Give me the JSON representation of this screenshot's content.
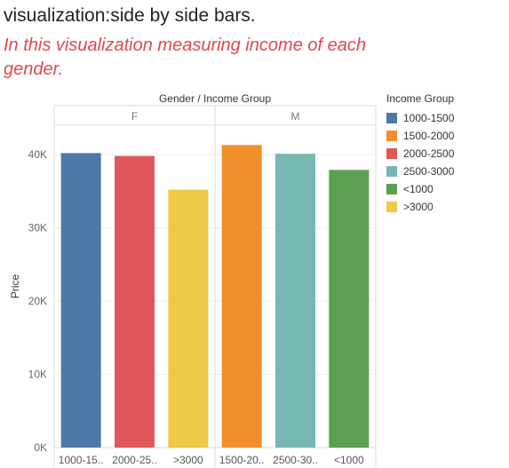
{
  "page": {
    "title": "visualization:side by side bars.",
    "subtitle": "In this visualization measuring income of each gender."
  },
  "chart_data": {
    "type": "bar",
    "header": "Gender  /  Income Group",
    "ylabel": "Price",
    "ylim": [
      0,
      44000
    ],
    "yticks": [
      {
        "value": 0,
        "label": "0K"
      },
      {
        "value": 10000,
        "label": "10K"
      },
      {
        "value": 20000,
        "label": "20K"
      },
      {
        "value": 30000,
        "label": "30K"
      },
      {
        "value": 40000,
        "label": "40K"
      }
    ],
    "panels": [
      {
        "gender": "F",
        "bars": [
          {
            "label": "1000-15..",
            "group": "1000-1500",
            "value": 40200
          },
          {
            "label": "2000-25..",
            "group": "2000-2500",
            "value": 39800
          },
          {
            "label": ">3000",
            "group": ">3000",
            "value": 35200
          }
        ]
      },
      {
        "gender": "M",
        "bars": [
          {
            "label": "1500-20..",
            "group": "1500-2000",
            "value": 41300
          },
          {
            "label": "2500-30..",
            "group": "2500-3000",
            "value": 40100
          },
          {
            "label": "<1000",
            "group": "<1000",
            "value": 37900
          }
        ]
      }
    ],
    "legend": {
      "title": "Income Group",
      "position": "right",
      "items": [
        {
          "label": "1000-1500",
          "color": "#4e79a7"
        },
        {
          "label": "1500-2000",
          "color": "#f28e2b"
        },
        {
          "label": "2000-2500",
          "color": "#e15759"
        },
        {
          "label": "2500-3000",
          "color": "#76b7b2"
        },
        {
          "label": "<1000",
          "color": "#59a14f"
        },
        {
          "label": ">3000",
          "color": "#edc948"
        }
      ]
    },
    "grid": true
  }
}
